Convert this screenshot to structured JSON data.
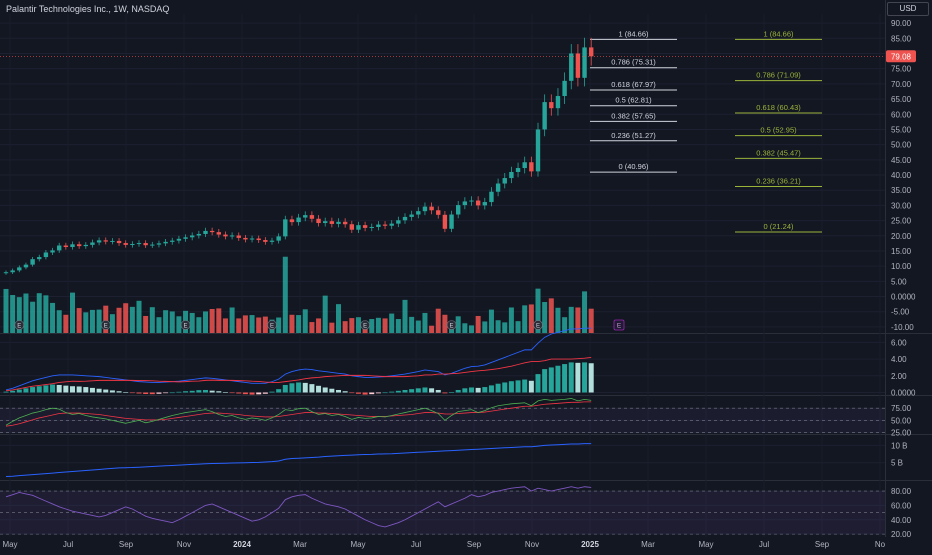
{
  "header": {
    "title": "Palantir Technologies Inc., 1W, NASDAQ",
    "currency": "USD"
  },
  "colors": {
    "background": "#131722",
    "up": "#26a69a",
    "down": "#ef5350",
    "fib_left": "#d1d4dc",
    "fib_right": "#9cb33a",
    "macd": "#2962ff",
    "signal": "#f23645",
    "rsi": "#7e57c2",
    "obv": "#2962ff"
  },
  "price_badge": "79.08",
  "chart_data": [
    {
      "type": "candlestick",
      "name": "price",
      "x_ticks": [
        "May",
        "Jul",
        "Sep",
        "Nov",
        "2024",
        "Mar",
        "May",
        "Jul",
        "Sep",
        "Nov",
        "2025",
        "Mar",
        "May",
        "Jul",
        "Sep",
        "No"
      ],
      "y_ticks": [
        "90.00",
        "85.00",
        "80.00",
        "75.00",
        "70.00",
        "65.00",
        "60.00",
        "55.00",
        "50.00",
        "45.00",
        "40.00",
        "35.00",
        "30.00",
        "25.00",
        "20.00",
        "15.00",
        "10.00",
        "5.00",
        "0.0000",
        "-5.00",
        "-10.00"
      ],
      "ylim": [
        -12,
        93
      ],
      "last_price": 79.08,
      "closes": [
        8.0,
        8.6,
        9.6,
        10.5,
        12.3,
        13.0,
        14.5,
        15.2,
        16.8,
        16.3,
        17.2,
        16.6,
        17.0,
        17.8,
        18.5,
        18.1,
        18.3,
        17.6,
        17.0,
        17.3,
        17.6,
        16.9,
        17.1,
        17.5,
        18.0,
        18.4,
        19.0,
        19.5,
        20.1,
        20.6,
        21.6,
        21.2,
        20.4,
        19.8,
        20.1,
        19.3,
        18.8,
        19.1,
        18.6,
        18.0,
        18.4,
        19.8,
        25.4,
        24.5,
        26.0,
        26.8,
        25.6,
        24.2,
        24.8,
        23.9,
        24.6,
        23.8,
        22.0,
        23.5,
        22.6,
        22.9,
        23.7,
        23.3,
        24.0,
        25.1,
        26.2,
        27.0,
        28.1,
        29.6,
        28.4,
        26.9,
        22.3,
        27.0,
        30.1,
        31.3,
        31.6,
        30.0,
        31.1,
        34.5,
        37.2,
        39.0,
        41.0,
        42.3,
        44.2,
        41.2,
        55.0,
        64.0,
        62.0,
        66.0,
        71.0,
        80.0,
        72.0,
        82.0,
        79.08
      ],
      "volume": [
        2.5,
        0.5,
        -0.2,
        1.0,
        -1.7,
        1.1,
        0.4,
        -2.1,
        -4.5,
        -6.0,
        1.3,
        -3.8,
        -5.2,
        -4.4,
        -4.3,
        -3.0,
        -5.8,
        -3.7,
        -2.2,
        -3.4,
        -1.4,
        -6.4,
        -3.5,
        -6.8,
        -4.5,
        -4.9,
        -6.5,
        -4.7,
        -5.4,
        -6.8,
        -4.9,
        -4.1,
        -3.9,
        -7.2,
        -3.6,
        -7.2,
        -6.2,
        -6.1,
        -6.9,
        -6.6,
        -7.6,
        -6.9,
        13.1,
        -6.0,
        -6.1,
        -4.2,
        -8.4,
        -7.2,
        0.3,
        -8.6,
        -2.5,
        -8.1,
        -7.1,
        -6.8,
        -8.2,
        -7.4,
        -7.0,
        -7.2,
        -5.6,
        -7.4,
        -1.1,
        -6.7,
        -7.9,
        -5.4,
        -9.6,
        -4.0,
        -6.0,
        -8.1,
        -6.5,
        -8.8,
        -9.5,
        -6.4,
        -8.2,
        -4.3,
        -7.8,
        -8.5,
        -3.6,
        -8.1,
        -2.9,
        -2.6,
        2.6,
        -1.8,
        -0.6,
        -3.7,
        -6.8,
        -3.4,
        -3.6,
        1.7,
        -4.0
      ],
      "event_markers": [
        "E",
        "E",
        "E",
        "E",
        "E",
        "E",
        "E",
        "E"
      ],
      "future_marker": "E",
      "fib_left": {
        "start_date": "2025-01",
        "end_date": "2025-04",
        "levels": [
          {
            "label": "1 (84.66)",
            "value": 84.66
          },
          {
            "label": "0.786 (75.31)",
            "value": 75.31
          },
          {
            "label": "0.618 (67.97)",
            "value": 67.97
          },
          {
            "label": "0.5 (62.81)",
            "value": 62.81
          },
          {
            "label": "0.382 (57.65)",
            "value": 57.65
          },
          {
            "label": "0.236 (51.27)",
            "value": 51.27
          },
          {
            "label": "0 (40.96)",
            "value": 40.96
          }
        ]
      },
      "fib_right": {
        "start_date": "2025-06",
        "end_date": "2025-09",
        "levels": [
          {
            "label": "1 (84.66)",
            "value": 84.66
          },
          {
            "label": "0.786 (71.09)",
            "value": 71.09
          },
          {
            "label": "0.618 (60.43)",
            "value": 60.43
          },
          {
            "label": "0.5 (52.95)",
            "value": 52.95
          },
          {
            "label": "0.382 (45.47)",
            "value": 45.47
          },
          {
            "label": "0.236 (36.21)",
            "value": 36.21
          },
          {
            "label": "0 (21.24)",
            "value": 21.24
          }
        ]
      }
    },
    {
      "type": "macd",
      "y_ticks": [
        "6.00",
        "4.00",
        "2.00",
        "0.0000"
      ],
      "ylim": [
        -0.3,
        7.0
      ],
      "histogram": [
        0.1,
        0.2,
        0.35,
        0.5,
        0.65,
        0.75,
        0.85,
        0.95,
        0.9,
        0.82,
        0.75,
        0.72,
        0.65,
        0.55,
        0.45,
        0.35,
        0.25,
        0.15,
        0.05,
        -0.05,
        -0.12,
        -0.18,
        -0.2,
        -0.15,
        -0.08,
        0.0,
        0.08,
        0.15,
        0.2,
        0.28,
        0.3,
        0.22,
        0.15,
        0.05,
        -0.05,
        -0.12,
        -0.2,
        -0.25,
        -0.22,
        -0.15,
        0.1,
        0.4,
        0.9,
        1.1,
        1.2,
        1.15,
        1.0,
        0.8,
        0.6,
        0.45,
        0.3,
        0.15,
        -0.05,
        -0.15,
        -0.25,
        -0.2,
        -0.1,
        0.0,
        0.1,
        0.2,
        0.3,
        0.4,
        0.5,
        0.6,
        0.5,
        0.3,
        -0.1,
        0.05,
        0.3,
        0.5,
        0.6,
        0.55,
        0.65,
        0.85,
        1.05,
        1.2,
        1.35,
        1.45,
        1.55,
        1.4,
        2.2,
        2.8,
        3.0,
        3.2,
        3.4,
        3.6,
        3.55,
        3.6,
        3.5
      ],
      "macd_line": [
        0.3,
        0.5,
        0.8,
        1.1,
        1.4,
        1.6,
        1.8,
        2.0,
        2.1,
        2.1,
        2.1,
        2.05,
        2.0,
        1.95,
        1.9,
        1.8,
        1.7,
        1.6,
        1.5,
        1.4,
        1.3,
        1.25,
        1.2,
        1.2,
        1.25,
        1.3,
        1.35,
        1.45,
        1.55,
        1.65,
        1.75,
        1.7,
        1.6,
        1.5,
        1.4,
        1.3,
        1.2,
        1.1,
        1.1,
        1.1,
        1.3,
        1.6,
        2.2,
        2.5,
        2.7,
        2.8,
        2.75,
        2.6,
        2.5,
        2.4,
        2.3,
        2.2,
        2.0,
        1.9,
        1.8,
        1.8,
        1.85,
        1.9,
        2.0,
        2.1,
        2.2,
        2.35,
        2.5,
        2.7,
        2.6,
        2.5,
        2.1,
        2.3,
        2.6,
        2.9,
        3.1,
        3.15,
        3.3,
        3.6,
        3.9,
        4.2,
        4.5,
        4.8,
        5.1,
        5.1,
        5.9,
        6.6,
        7.0,
        7.2,
        7.4,
        7.6,
        7.6,
        7.7,
        7.7
      ],
      "signal_line": [
        0.2,
        0.3,
        0.45,
        0.6,
        0.75,
        0.85,
        0.95,
        1.05,
        1.2,
        1.28,
        1.35,
        1.33,
        1.35,
        1.4,
        1.45,
        1.45,
        1.45,
        1.45,
        1.45,
        1.45,
        1.42,
        1.43,
        1.4,
        1.35,
        1.33,
        1.3,
        1.27,
        1.3,
        1.35,
        1.37,
        1.45,
        1.48,
        1.45,
        1.45,
        1.45,
        1.42,
        1.4,
        1.35,
        1.32,
        1.25,
        1.2,
        1.2,
        1.3,
        1.4,
        1.5,
        1.65,
        1.75,
        1.8,
        1.9,
        1.95,
        2.0,
        2.05,
        2.05,
        2.05,
        2.05,
        2.0,
        1.95,
        1.9,
        1.9,
        1.9,
        1.9,
        1.95,
        2.0,
        2.1,
        2.1,
        2.2,
        2.2,
        2.25,
        2.3,
        2.4,
        2.5,
        2.6,
        2.65,
        2.75,
        2.85,
        3.0,
        3.15,
        3.35,
        3.55,
        3.7,
        3.7,
        3.8,
        4.0,
        4.0,
        4.0,
        4.0,
        4.05,
        4.1,
        4.2
      ]
    },
    {
      "type": "line",
      "name": "oscillator",
      "y_ticks": [
        "75.00",
        "50.00",
        "25.00"
      ],
      "ylim": [
        22,
        100
      ],
      "bands": [
        25,
        50,
        75
      ],
      "values": [
        40,
        48,
        55,
        60,
        65,
        68,
        72,
        75,
        73,
        66,
        62,
        64,
        60,
        57,
        55,
        53,
        50,
        47,
        44,
        47,
        50,
        45,
        48,
        52,
        56,
        60,
        63,
        66,
        68,
        70,
        72,
        68,
        62,
        58,
        60,
        55,
        52,
        55,
        53,
        50,
        55,
        62,
        72,
        70,
        74,
        75,
        68,
        62,
        64,
        60,
        62,
        58,
        52,
        56,
        54,
        55,
        58,
        57,
        60,
        63,
        66,
        69,
        72,
        75,
        70,
        64,
        50,
        60,
        68,
        70,
        72,
        66,
        70,
        76,
        80,
        82,
        84,
        85,
        86,
        80,
        90,
        93,
        91,
        92,
        93,
        95,
        90,
        93,
        91
      ],
      "smoothing": [
        38,
        40,
        43,
        47,
        51,
        55,
        58,
        61,
        64,
        65,
        65,
        65,
        64,
        63,
        62,
        60,
        58,
        56,
        54,
        53,
        52,
        51,
        51,
        51,
        52,
        54,
        56,
        58,
        60,
        62,
        64,
        65,
        65,
        64,
        63,
        62,
        60,
        59,
        58,
        57,
        57,
        58,
        60,
        62,
        64,
        66,
        66,
        65,
        65,
        64,
        63,
        62,
        61,
        60,
        59,
        58,
        58,
        58,
        59,
        60,
        61,
        62,
        64,
        66,
        66,
        65,
        63,
        63,
        64,
        65,
        66,
        66,
        67,
        69,
        71,
        73,
        75,
        77,
        79,
        79,
        81,
        83,
        84,
        85,
        86,
        87,
        87,
        88,
        88
      ]
    },
    {
      "type": "line",
      "name": "on-balance volume",
      "y_ticks": [
        "10 B",
        "5 B"
      ],
      "ylim": [
        0,
        13
      ],
      "values": [
        1.0,
        1.1,
        1.25,
        1.4,
        1.55,
        1.7,
        1.85,
        2.0,
        2.15,
        2.3,
        2.45,
        2.6,
        2.75,
        2.9,
        3.05,
        3.2,
        3.35,
        3.5,
        3.55,
        3.6,
        3.7,
        3.8,
        3.9,
        4.0,
        4.1,
        4.2,
        4.3,
        4.4,
        4.5,
        4.6,
        4.7,
        4.75,
        4.8,
        4.85,
        4.9,
        4.95,
        5.0,
        5.05,
        5.1,
        5.2,
        5.3,
        5.5,
        6.0,
        6.2,
        6.3,
        6.4,
        6.5,
        6.6,
        6.8,
        6.9,
        7.0,
        7.1,
        7.2,
        7.3,
        7.35,
        7.4,
        7.5,
        7.55,
        7.6,
        7.7,
        7.8,
        7.9,
        8.0,
        8.1,
        8.2,
        8.3,
        8.4,
        8.5,
        8.6,
        8.7,
        8.8,
        8.9,
        9.0,
        9.1,
        9.2,
        9.3,
        9.4,
        9.5,
        9.6,
        9.6,
        9.8,
        10.0,
        10.1,
        10.2,
        10.3,
        10.4,
        10.4,
        10.5,
        10.5
      ]
    },
    {
      "type": "line",
      "name": "rsi",
      "y_ticks": [
        "80.00",
        "60.00",
        "40.00",
        "20.00"
      ],
      "ylim": [
        16,
        94
      ],
      "bands": [
        20,
        50,
        80
      ],
      "values": [
        72,
        75,
        78,
        76,
        74,
        70,
        66,
        62,
        58,
        55,
        52,
        50,
        48,
        46,
        44,
        46,
        50,
        54,
        58,
        55,
        50,
        45,
        42,
        40,
        38,
        36,
        40,
        45,
        50,
        55,
        60,
        62,
        58,
        54,
        50,
        46,
        42,
        38,
        40,
        44,
        50,
        56,
        68,
        72,
        74,
        75,
        70,
        66,
        62,
        60,
        58,
        55,
        50,
        45,
        40,
        36,
        32,
        30,
        33,
        36,
        40,
        45,
        50,
        55,
        60,
        65,
        58,
        62,
        66,
        70,
        75,
        72,
        74,
        78,
        80,
        82,
        84,
        85,
        86,
        80,
        84,
        82,
        80,
        82,
        84,
        86,
        84,
        86,
        85
      ]
    }
  ]
}
